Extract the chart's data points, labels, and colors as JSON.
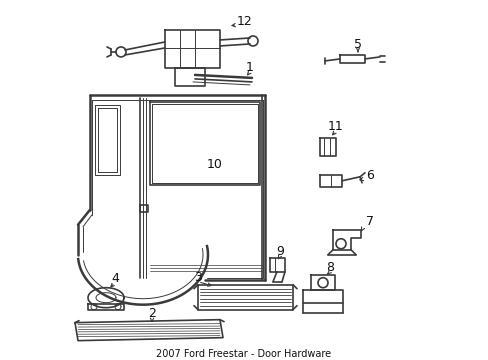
{
  "bg_color": "#ffffff",
  "line_color": "#3a3a3a",
  "text_color": "#111111",
  "figsize": [
    4.89,
    3.6
  ],
  "dpi": 100,
  "lw_main": 1.2,
  "lw_thin": 0.7,
  "lw_thick": 1.8
}
